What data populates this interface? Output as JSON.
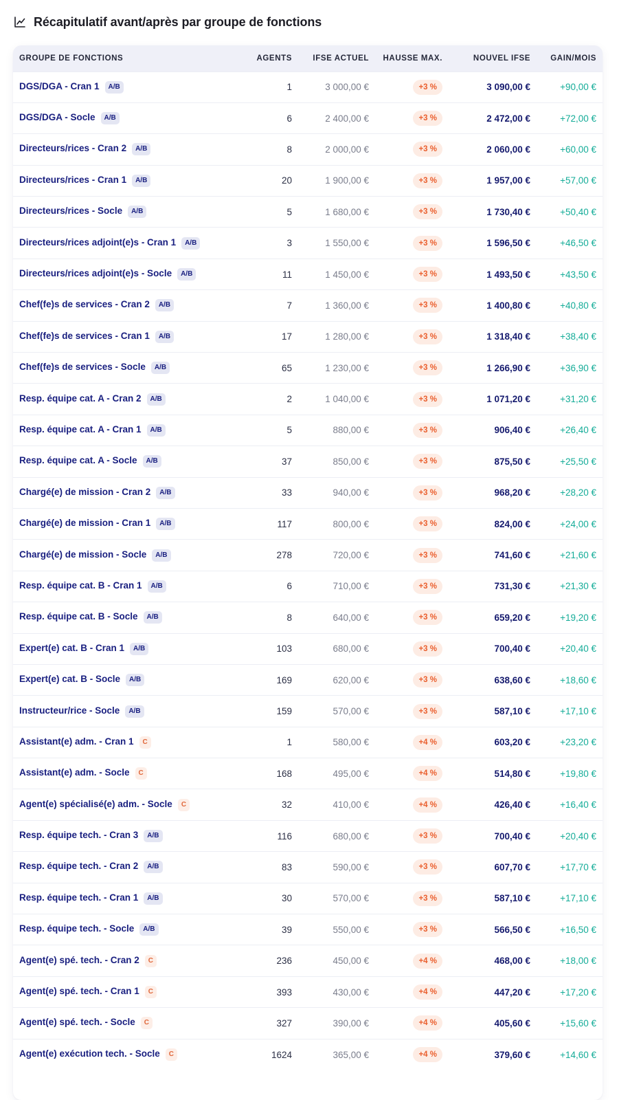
{
  "header": {
    "title": "Récapitulatif avant/après par groupe de fonctions",
    "icon": "line-chart-icon"
  },
  "table": {
    "columns": [
      "GROUPE DE FONCTIONS",
      "AGENTS",
      "IFSE ACTUEL",
      "HAUSSE MAX.",
      "NOUVEL IFSE",
      "GAIN/MOIS"
    ],
    "rows": [
      {
        "groupe": "DGS/DGA - Cran 1",
        "cat": "A/B",
        "agents": "1",
        "actuel": "3 000,00 €",
        "hausse": "+3 %",
        "nouveau": "3 090,00 €",
        "gain": "+90,00 €"
      },
      {
        "groupe": "DGS/DGA - Socle",
        "cat": "A/B",
        "agents": "6",
        "actuel": "2 400,00 €",
        "hausse": "+3 %",
        "nouveau": "2 472,00 €",
        "gain": "+72,00 €"
      },
      {
        "groupe": "Directeurs/rices - Cran 2",
        "cat": "A/B",
        "agents": "8",
        "actuel": "2 000,00 €",
        "hausse": "+3 %",
        "nouveau": "2 060,00 €",
        "gain": "+60,00 €"
      },
      {
        "groupe": "Directeurs/rices - Cran 1",
        "cat": "A/B",
        "agents": "20",
        "actuel": "1 900,00 €",
        "hausse": "+3 %",
        "nouveau": "1 957,00 €",
        "gain": "+57,00 €"
      },
      {
        "groupe": "Directeurs/rices - Socle",
        "cat": "A/B",
        "agents": "5",
        "actuel": "1 680,00 €",
        "hausse": "+3 %",
        "nouveau": "1 730,40 €",
        "gain": "+50,40 €"
      },
      {
        "groupe": "Directeurs/rices adjoint(e)s - Cran 1",
        "cat": "A/B",
        "agents": "3",
        "actuel": "1 550,00 €",
        "hausse": "+3 %",
        "nouveau": "1 596,50 €",
        "gain": "+46,50 €"
      },
      {
        "groupe": "Directeurs/rices adjoint(e)s - Socle",
        "cat": "A/B",
        "agents": "11",
        "actuel": "1 450,00 €",
        "hausse": "+3 %",
        "nouveau": "1 493,50 €",
        "gain": "+43,50 €"
      },
      {
        "groupe": "Chef(fe)s de services - Cran 2",
        "cat": "A/B",
        "agents": "7",
        "actuel": "1 360,00 €",
        "hausse": "+3 %",
        "nouveau": "1 400,80 €",
        "gain": "+40,80 €"
      },
      {
        "groupe": "Chef(fe)s de services - Cran 1",
        "cat": "A/B",
        "agents": "17",
        "actuel": "1 280,00 €",
        "hausse": "+3 %",
        "nouveau": "1 318,40 €",
        "gain": "+38,40 €"
      },
      {
        "groupe": "Chef(fe)s de services - Socle",
        "cat": "A/B",
        "agents": "65",
        "actuel": "1 230,00 €",
        "hausse": "+3 %",
        "nouveau": "1 266,90 €",
        "gain": "+36,90 €"
      },
      {
        "groupe": "Resp. équipe cat. A - Cran 2",
        "cat": "A/B",
        "agents": "2",
        "actuel": "1 040,00 €",
        "hausse": "+3 %",
        "nouveau": "1 071,20 €",
        "gain": "+31,20 €"
      },
      {
        "groupe": "Resp. équipe cat. A - Cran 1",
        "cat": "A/B",
        "agents": "5",
        "actuel": "880,00 €",
        "hausse": "+3 %",
        "nouveau": "906,40 €",
        "gain": "+26,40 €"
      },
      {
        "groupe": "Resp. équipe cat. A - Socle",
        "cat": "A/B",
        "agents": "37",
        "actuel": "850,00 €",
        "hausse": "+3 %",
        "nouveau": "875,50 €",
        "gain": "+25,50 €"
      },
      {
        "groupe": "Chargé(e) de mission - Cran 2",
        "cat": "A/B",
        "agents": "33",
        "actuel": "940,00 €",
        "hausse": "+3 %",
        "nouveau": "968,20 €",
        "gain": "+28,20 €"
      },
      {
        "groupe": "Chargé(e) de mission - Cran 1",
        "cat": "A/B",
        "agents": "117",
        "actuel": "800,00 €",
        "hausse": "+3 %",
        "nouveau": "824,00 €",
        "gain": "+24,00 €"
      },
      {
        "groupe": "Chargé(e) de mission - Socle",
        "cat": "A/B",
        "agents": "278",
        "actuel": "720,00 €",
        "hausse": "+3 %",
        "nouveau": "741,60 €",
        "gain": "+21,60 €"
      },
      {
        "groupe": "Resp. équipe cat. B - Cran 1",
        "cat": "A/B",
        "agents": "6",
        "actuel": "710,00 €",
        "hausse": "+3 %",
        "nouveau": "731,30 €",
        "gain": "+21,30 €"
      },
      {
        "groupe": "Resp. équipe cat. B - Socle",
        "cat": "A/B",
        "agents": "8",
        "actuel": "640,00 €",
        "hausse": "+3 %",
        "nouveau": "659,20 €",
        "gain": "+19,20 €"
      },
      {
        "groupe": "Expert(e) cat. B - Cran 1",
        "cat": "A/B",
        "agents": "103",
        "actuel": "680,00 €",
        "hausse": "+3 %",
        "nouveau": "700,40 €",
        "gain": "+20,40 €"
      },
      {
        "groupe": "Expert(e) cat. B - Socle",
        "cat": "A/B",
        "agents": "169",
        "actuel": "620,00 €",
        "hausse": "+3 %",
        "nouveau": "638,60 €",
        "gain": "+18,60 €"
      },
      {
        "groupe": "Instructeur/rice - Socle",
        "cat": "A/B",
        "agents": "159",
        "actuel": "570,00 €",
        "hausse": "+3 %",
        "nouveau": "587,10 €",
        "gain": "+17,10 €"
      },
      {
        "groupe": "Assistant(e) adm. - Cran 1",
        "cat": "C",
        "agents": "1",
        "actuel": "580,00 €",
        "hausse": "+4 %",
        "nouveau": "603,20 €",
        "gain": "+23,20 €"
      },
      {
        "groupe": "Assistant(e) adm. - Socle",
        "cat": "C",
        "agents": "168",
        "actuel": "495,00 €",
        "hausse": "+4 %",
        "nouveau": "514,80 €",
        "gain": "+19,80 €"
      },
      {
        "groupe": "Agent(e) spécialisé(e) adm. - Socle",
        "cat": "C",
        "agents": "32",
        "actuel": "410,00 €",
        "hausse": "+4 %",
        "nouveau": "426,40 €",
        "gain": "+16,40 €"
      },
      {
        "groupe": "Resp. équipe tech. - Cran 3",
        "cat": "A/B",
        "agents": "116",
        "actuel": "680,00 €",
        "hausse": "+3 %",
        "nouveau": "700,40 €",
        "gain": "+20,40 €"
      },
      {
        "groupe": "Resp. équipe tech. - Cran 2",
        "cat": "A/B",
        "agents": "83",
        "actuel": "590,00 €",
        "hausse": "+3 %",
        "nouveau": "607,70 €",
        "gain": "+17,70 €"
      },
      {
        "groupe": "Resp. équipe tech. - Cran 1",
        "cat": "A/B",
        "agents": "30",
        "actuel": "570,00 €",
        "hausse": "+3 %",
        "nouveau": "587,10 €",
        "gain": "+17,10 €"
      },
      {
        "groupe": "Resp. équipe tech. - Socle",
        "cat": "A/B",
        "agents": "39",
        "actuel": "550,00 €",
        "hausse": "+3 %",
        "nouveau": "566,50 €",
        "gain": "+16,50 €"
      },
      {
        "groupe": "Agent(e) spé. tech. - Cran 2",
        "cat": "C",
        "agents": "236",
        "actuel": "450,00 €",
        "hausse": "+4 %",
        "nouveau": "468,00 €",
        "gain": "+18,00 €"
      },
      {
        "groupe": "Agent(e) spé. tech. - Cran 1",
        "cat": "C",
        "agents": "393",
        "actuel": "430,00 €",
        "hausse": "+4 %",
        "nouveau": "447,20 €",
        "gain": "+17,20 €"
      },
      {
        "groupe": "Agent(e) spé. tech. - Socle",
        "cat": "C",
        "agents": "327",
        "actuel": "390,00 €",
        "hausse": "+4 %",
        "nouveau": "405,60 €",
        "gain": "+15,60 €"
      },
      {
        "groupe": "Agent(e) exécution tech. - Socle",
        "cat": "C",
        "agents": "1624",
        "actuel": "365,00 €",
        "hausse": "+4 %",
        "nouveau": "379,60 €",
        "gain": "+14,60 €"
      }
    ]
  },
  "colors": {
    "name_text": "#1a2080",
    "ab_badge_bg": "#e4e6f3",
    "c_badge_bg": "#fdeee7",
    "c_badge_text": "#e0673a",
    "hausse_pill_bg": "#fdece4",
    "hausse_pill_text": "#ea5f2e",
    "gain_text": "#14ac98",
    "header_bg": "#eff0f8"
  }
}
